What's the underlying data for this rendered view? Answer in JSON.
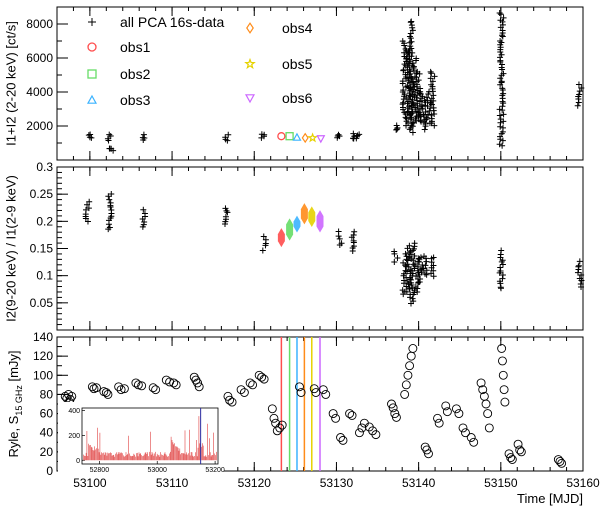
{
  "colors": {
    "obs1": "#ff4d4d",
    "obs2": "#66dd66",
    "obs3": "#3bb3ff",
    "obs4": "#ff8c1a",
    "obs5": "#e6d200",
    "obs6": "#cc66ff",
    "inset_red": "#e04040",
    "inset_blue": "#2a2aa0"
  },
  "chart_data": [
    {
      "type": "scatter",
      "panel": "count-rate",
      "ylabel": "I1+I2 (2-20 keV) [ct/s]",
      "xlim": [
        53096,
        53160
      ],
      "ylim": [
        0,
        9000
      ],
      "yticks": [
        2000,
        4000,
        6000,
        8000
      ],
      "legend": {
        "placement": "top-left",
        "entries": [
          {
            "key": "all",
            "label": "all PCA 16s-data",
            "marker": "plus"
          },
          {
            "key": "obs1",
            "label": "obs1",
            "marker": "circle"
          },
          {
            "key": "obs2",
            "label": "obs2",
            "marker": "square"
          },
          {
            "key": "obs3",
            "label": "obs3",
            "marker": "triangle-up"
          },
          {
            "key": "obs4",
            "label": "obs4",
            "marker": "diamond"
          },
          {
            "key": "obs5",
            "label": "obs5",
            "marker": "star"
          },
          {
            "key": "obs6",
            "label": "obs6",
            "marker": "triangle-down"
          }
        ]
      },
      "clusters": [
        {
          "x": 53100,
          "y": [
            1250,
            1500
          ]
        },
        {
          "x": 53102.4,
          "y": [
            1150,
            1500
          ]
        },
        {
          "x": 53102.6,
          "y": [
            600,
            700
          ]
        },
        {
          "x": 53106.6,
          "y": [
            1200,
            1450
          ]
        },
        {
          "x": 53116.6,
          "y": [
            1100,
            1450
          ]
        },
        {
          "x": 53121,
          "y": [
            1300,
            1500
          ]
        },
        {
          "x": 53130.3,
          "y": [
            1300,
            1500
          ]
        },
        {
          "x": 53132.1,
          "y": [
            1250,
            1500
          ]
        },
        {
          "x": 53132.6,
          "y": [
            1300,
            1500
          ]
        },
        {
          "x": 53137.2,
          "y": [
            1800,
            2000
          ]
        },
        {
          "x": 53138.3,
          "y": [
            2500,
            7000
          ]
        },
        {
          "x": 53138.7,
          "y": [
            2000,
            6500
          ]
        },
        {
          "x": 53139.1,
          "y": [
            1600,
            8200
          ]
        },
        {
          "x": 53139.5,
          "y": [
            2000,
            6000
          ]
        },
        {
          "x": 53139.9,
          "y": [
            2500,
            5200
          ]
        },
        {
          "x": 53140.3,
          "y": [
            2200,
            4200
          ]
        },
        {
          "x": 53140.7,
          "y": [
            1800,
            3500
          ]
        },
        {
          "x": 53141.2,
          "y": [
            2200,
            4000
          ]
        },
        {
          "x": 53141.7,
          "y": [
            2000,
            5200
          ]
        },
        {
          "x": 53150.1,
          "y": [
            800,
            8700
          ]
        },
        {
          "x": 53159.6,
          "y": [
            3200,
            4400
          ]
        }
      ],
      "obs_points": [
        {
          "key": "obs1",
          "x": 53123.3,
          "y": 1400
        },
        {
          "key": "obs2",
          "x": 53124.3,
          "y": 1400
        },
        {
          "key": "obs3",
          "x": 53125.2,
          "y": 1330
        },
        {
          "key": "obs4",
          "x": 53126.2,
          "y": 1300
        },
        {
          "key": "obs5",
          "x": 53127.1,
          "y": 1300
        },
        {
          "key": "obs6",
          "x": 53128.1,
          "y": 1260
        }
      ]
    },
    {
      "type": "scatter",
      "panel": "hardness-ratio",
      "ylabel": "I2(9-20 keV) / I1(2-9 keV)",
      "xlim": [
        53096,
        53160
      ],
      "ylim": [
        0,
        0.3
      ],
      "yticks": [
        0.05,
        0.1,
        0.15,
        0.2,
        0.25,
        0.3
      ],
      "yticklabels": [
        "0.05",
        "0.1",
        "0.15",
        "0.2",
        "0.25",
        "0.3"
      ],
      "clusters": [
        {
          "x": 53099.7,
          "y": [
            0.2,
            0.235
          ]
        },
        {
          "x": 53102.4,
          "y": [
            0.185,
            0.25
          ]
        },
        {
          "x": 53106.6,
          "y": [
            0.19,
            0.22
          ]
        },
        {
          "x": 53116.6,
          "y": [
            0.195,
            0.225
          ]
        },
        {
          "x": 53121.2,
          "y": [
            0.148,
            0.172
          ]
        },
        {
          "x": 53130.5,
          "y": [
            0.155,
            0.18
          ]
        },
        {
          "x": 53132.1,
          "y": [
            0.145,
            0.18
          ]
        },
        {
          "x": 53137.2,
          "y": [
            0.125,
            0.145
          ]
        },
        {
          "x": 53138.3,
          "y": [
            0.065,
            0.14
          ]
        },
        {
          "x": 53138.8,
          "y": [
            0.06,
            0.155
          ]
        },
        {
          "x": 53139.3,
          "y": [
            0.05,
            0.16
          ]
        },
        {
          "x": 53139.8,
          "y": [
            0.07,
            0.13
          ]
        },
        {
          "x": 53140.3,
          "y": [
            0.09,
            0.135
          ]
        },
        {
          "x": 53140.8,
          "y": [
            0.1,
            0.135
          ]
        },
        {
          "x": 53141.7,
          "y": [
            0.1,
            0.135
          ]
        },
        {
          "x": 53150.1,
          "y": [
            0.075,
            0.145
          ]
        },
        {
          "x": 53159.6,
          "y": [
            0.08,
            0.125
          ]
        }
      ],
      "obs_bars": [
        {
          "key": "obs1",
          "x": 53123.3,
          "y": [
            0.158,
            0.182
          ]
        },
        {
          "key": "obs2",
          "x": 53124.3,
          "y": [
            0.17,
            0.2
          ]
        },
        {
          "key": "obs3",
          "x": 53125.2,
          "y": [
            0.185,
            0.205
          ]
        },
        {
          "key": "obs4",
          "x": 53126.1,
          "y": [
            0.2,
            0.228
          ]
        },
        {
          "key": "obs5",
          "x": 53127.0,
          "y": [
            0.195,
            0.222
          ]
        },
        {
          "key": "obs6",
          "x": 53128.0,
          "y": [
            0.185,
            0.215
          ]
        }
      ]
    },
    {
      "type": "scatter",
      "panel": "radio",
      "ylabel": "Ryle, S",
      "ylabel_sub": "15 GHz",
      "ylabel_unit": "[mJy]",
      "xlabel": "Time [MJD]",
      "xlim": [
        53096,
        53160
      ],
      "ylim": [
        0,
        140
      ],
      "xticks": [
        53100,
        53110,
        53120,
        53130,
        53140,
        53150,
        53160
      ],
      "xticklabels": [
        "53100",
        "53110",
        "53120",
        "53130",
        "53140",
        "53150",
        "53160"
      ],
      "yticks": [
        0,
        20,
        40,
        60,
        80,
        100,
        120,
        140
      ],
      "obs_lines": [
        {
          "key": "obs1",
          "x": 53123.3
        },
        {
          "key": "obs2",
          "x": 53124.3
        },
        {
          "key": "obs3",
          "x": 53125.2
        },
        {
          "key": "obs4",
          "x": 53126.1
        },
        {
          "key": "obs5",
          "x": 53127.0
        },
        {
          "key": "obs6",
          "x": 53128.0
        }
      ],
      "points": [
        [
          53097,
          78
        ],
        [
          53097.2,
          76
        ],
        [
          53097.4,
          80
        ],
        [
          53097.6,
          75
        ],
        [
          53097.8,
          78
        ],
        [
          53097.5,
          72
        ],
        [
          53100.3,
          88
        ],
        [
          53100.5,
          86
        ],
        [
          53100.8,
          87
        ],
        [
          53101.7,
          83
        ],
        [
          53102,
          82
        ],
        [
          53102.2,
          80
        ],
        [
          53103.5,
          88
        ],
        [
          53103.8,
          85
        ],
        [
          53104.2,
          86
        ],
        [
          53105.6,
          92
        ],
        [
          53105.9,
          90
        ],
        [
          53106.3,
          89
        ],
        [
          53107.7,
          87
        ],
        [
          53108,
          85
        ],
        [
          53109.3,
          95
        ],
        [
          53109.7,
          93
        ],
        [
          53110.2,
          92
        ],
        [
          53110.5,
          90
        ],
        [
          53112.7,
          98
        ],
        [
          53112.9,
          95
        ],
        [
          53113.1,
          92
        ],
        [
          53113.3,
          88
        ],
        [
          53116.8,
          78
        ],
        [
          53117,
          74
        ],
        [
          53117.3,
          72
        ],
        [
          53118.4,
          85
        ],
        [
          53118.8,
          82
        ],
        [
          53119.5,
          92
        ],
        [
          53119.8,
          90
        ],
        [
          53120.6,
          100
        ],
        [
          53120.9,
          98
        ],
        [
          53121.2,
          96
        ],
        [
          53122.2,
          65
        ],
        [
          53122.4,
          55
        ],
        [
          53122.6,
          50
        ],
        [
          53122.8,
          42
        ],
        [
          53123.1,
          45
        ],
        [
          53123.4,
          48
        ],
        [
          53125.5,
          88
        ],
        [
          53125.7,
          82
        ],
        [
          53127.3,
          86
        ],
        [
          53127.5,
          82
        ],
        [
          53128.4,
          85
        ],
        [
          53128.7,
          80
        ],
        [
          53129.6,
          60
        ],
        [
          53129.9,
          55
        ],
        [
          53130.5,
          35
        ],
        [
          53130.8,
          32
        ],
        [
          53131.6,
          60
        ],
        [
          53131.9,
          58
        ],
        [
          53132.8,
          40
        ],
        [
          53133.1,
          45
        ],
        [
          53133.4,
          50
        ],
        [
          53134,
          46
        ],
        [
          53134.4,
          42
        ],
        [
          53134.8,
          38
        ],
        [
          53136.7,
          70
        ],
        [
          53136.9,
          66
        ],
        [
          53137.1,
          60
        ],
        [
          53137.3,
          56
        ],
        [
          53138.3,
          80
        ],
        [
          53138.5,
          90
        ],
        [
          53138.7,
          100
        ],
        [
          53138.9,
          110
        ],
        [
          53139.1,
          120
        ],
        [
          53139.3,
          128
        ],
        [
          53140.8,
          25
        ],
        [
          53141,
          22
        ],
        [
          53141.2,
          18
        ],
        [
          53142.3,
          55
        ],
        [
          53142.5,
          50
        ],
        [
          53143.3,
          68
        ],
        [
          53143.5,
          62
        ],
        [
          53144.6,
          65
        ],
        [
          53144.9,
          60
        ],
        [
          53145.4,
          45
        ],
        [
          53145.7,
          40
        ],
        [
          53146.4,
          35
        ],
        [
          53146.7,
          30
        ],
        [
          53147.6,
          92
        ],
        [
          53147.8,
          85
        ],
        [
          53148,
          78
        ],
        [
          53148.2,
          70
        ],
        [
          53148.4,
          60
        ],
        [
          53148.6,
          45
        ],
        [
          53150.1,
          128
        ],
        [
          53150.2,
          115
        ],
        [
          53150.3,
          100
        ],
        [
          53150.4,
          85
        ],
        [
          53150.5,
          72
        ],
        [
          53151,
          18
        ],
        [
          53151.2,
          14
        ],
        [
          53151.4,
          12
        ],
        [
          53152.1,
          28
        ],
        [
          53152.3,
          22
        ],
        [
          53152.5,
          20
        ],
        [
          53157,
          12
        ],
        [
          53157.2,
          10
        ],
        [
          53157.4,
          8
        ]
      ],
      "inset": {
        "xlim": [
          52740,
          53210
        ],
        "ylim": [
          -30,
          420
        ],
        "xticks": [
          52800,
          53000,
          53200
        ],
        "xticklabels": [
          "52800",
          "53000",
          "53200"
        ],
        "yticks": [
          0,
          200,
          400
        ],
        "yticklabels": [
          "0",
          "200",
          "400"
        ],
        "marker_x": 53150
      }
    }
  ]
}
